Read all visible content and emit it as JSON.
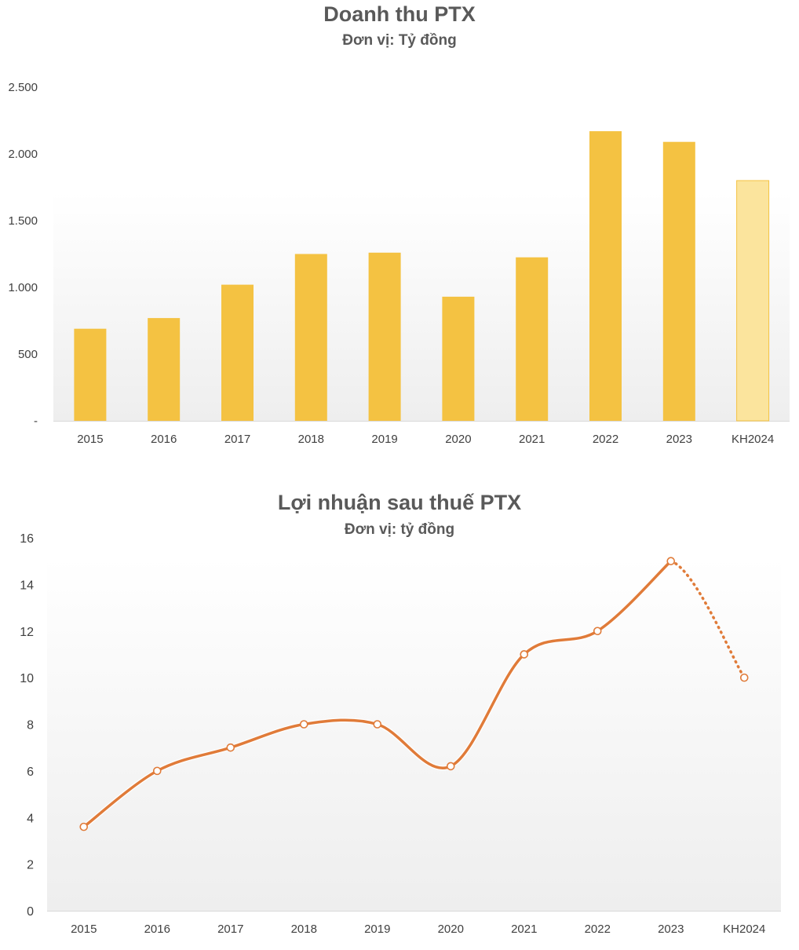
{
  "chart_data": [
    {
      "type": "bar",
      "title": "Doanh thu PTX",
      "subtitle": "Đơn vị: Tỷ đồng",
      "categories": [
        "2015",
        "2016",
        "2017",
        "2018",
        "2019",
        "2020",
        "2021",
        "2022",
        "2023",
        "KH2024"
      ],
      "values": [
        690,
        770,
        1020,
        1250,
        1260,
        930,
        1225,
        2170,
        2090,
        1800
      ],
      "ylim": [
        0,
        2500
      ],
      "yticks": [
        0,
        500,
        1000,
        1500,
        2000,
        2500
      ],
      "ytick_labels": [
        "-",
        "500",
        "1.000",
        "1.500",
        "2.000",
        "2.500"
      ],
      "bar_color": "#F4C242",
      "plan_bar_color": "#FBE49D",
      "grid": false,
      "legend": "none"
    },
    {
      "type": "line",
      "title": "Lợi nhuận sau thuế PTX",
      "subtitle": "Đơn vị: tỷ đồng",
      "categories": [
        "2015",
        "2016",
        "2017",
        "2018",
        "2019",
        "2020",
        "2021",
        "2022",
        "2023",
        "KH2024"
      ],
      "values": [
        3.6,
        6,
        7,
        8,
        8,
        6.2,
        11,
        12,
        15,
        10
      ],
      "ylim": [
        0,
        16
      ],
      "yticks": [
        0,
        2,
        4,
        6,
        8,
        10,
        12,
        14,
        16
      ],
      "ytick_labels": [
        "0",
        "2",
        "4",
        "6",
        "8",
        "10",
        "12",
        "14",
        "16"
      ],
      "line_color": "#E07B39",
      "plan_segment_style": "dotted",
      "grid": false,
      "legend": "none"
    }
  ]
}
